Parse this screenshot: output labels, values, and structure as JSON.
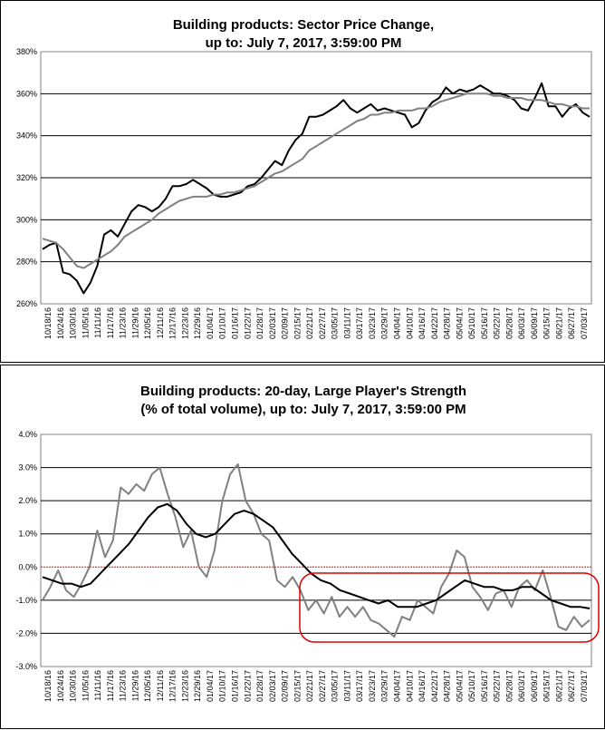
{
  "chart_data": [
    {
      "type": "line",
      "title": "Building products: Sector Price Change,",
      "subtitle": "up to: July 7, 2017, 3:59:00 PM",
      "xlabel": "",
      "ylabel": "",
      "ylim": [
        260,
        380
      ],
      "yticks": [
        "260%",
        "280%",
        "300%",
        "320%",
        "340%",
        "360%",
        "380%"
      ],
      "grid": true,
      "x_tick_labels": [
        "10/18/16",
        "10/24/16",
        "10/30/16",
        "11/05/16",
        "11/11/16",
        "11/17/16",
        "11/23/16",
        "11/29/16",
        "12/05/16",
        "12/11/16",
        "12/17/16",
        "12/23/16",
        "12/29/16",
        "01/04/17",
        "01/10/17",
        "01/16/17",
        "01/22/17",
        "01/28/17",
        "02/03/17",
        "02/09/17",
        "02/15/17",
        "02/21/17",
        "02/27/17",
        "03/05/17",
        "03/11/17",
        "03/17/17",
        "03/23/17",
        "03/29/17",
        "04/04/17",
        "04/10/17",
        "04/16/17",
        "04/22/17",
        "04/28/17",
        "05/04/17",
        "05/10/17",
        "05/16/17",
        "05/22/17",
        "05/28/17",
        "06/03/17",
        "06/09/17",
        "06/15/17",
        "06/21/17",
        "06/27/17",
        "07/03/17"
      ],
      "series": [
        {
          "color": "#000000",
          "values": [
            286,
            288,
            289,
            275,
            274,
            271,
            265,
            270,
            278,
            293,
            295,
            292,
            298,
            304,
            307,
            306,
            304,
            306,
            310,
            316,
            316,
            317,
            319,
            317,
            315,
            312,
            311,
            311,
            312,
            313,
            316,
            317,
            320,
            324,
            328,
            326,
            333,
            338,
            341,
            349,
            349,
            350,
            352,
            354,
            357,
            353,
            351,
            353,
            355,
            352,
            353,
            352,
            351,
            350,
            344,
            346,
            352,
            356,
            358,
            363,
            360,
            362,
            361,
            362,
            364,
            362,
            360,
            360,
            359,
            357,
            353,
            352,
            358,
            365,
            354,
            354,
            349,
            353,
            355,
            351,
            349
          ]
        },
        {
          "color": "#808080",
          "values": [
            291,
            290,
            289,
            286,
            282,
            278,
            277,
            279,
            281,
            283,
            285,
            288,
            292,
            294,
            296,
            298,
            300,
            303,
            305,
            307,
            309,
            310,
            311,
            311,
            311,
            312,
            312,
            313,
            313,
            314,
            315,
            316,
            318,
            320,
            322,
            323,
            325,
            327,
            329,
            333,
            335,
            337,
            339,
            341,
            343,
            345,
            347,
            348,
            350,
            350,
            351,
            351,
            352,
            352,
            352,
            353,
            353,
            354,
            356,
            357,
            358,
            359,
            360,
            360,
            360,
            360,
            359,
            359,
            358,
            358,
            358,
            357,
            357,
            357,
            356,
            355,
            355,
            354,
            354,
            353,
            353
          ]
        }
      ]
    },
    {
      "type": "line",
      "title": "Building products: 20-day, Large Player's Strength",
      "subtitle": "(% of total volume), up to: July 7, 2017, 3:59:00 PM",
      "xlabel": "",
      "ylabel": "",
      "ylim": [
        -3.0,
        4.0
      ],
      "yticks": [
        "-3.0%",
        "-2.0%",
        "-1.0%",
        "0.0%",
        "1.0%",
        "2.0%",
        "3.0%",
        "4.0%"
      ],
      "grid": true,
      "zero_line_color": "#ff0000",
      "highlight": "red rounded rectangle around the right portion of the lines",
      "x_tick_labels": [
        "10/18/16",
        "10/24/16",
        "10/30/16",
        "11/05/16",
        "11/11/16",
        "11/17/16",
        "11/23/16",
        "11/29/16",
        "12/05/16",
        "12/11/16",
        "12/17/16",
        "12/23/16",
        "12/29/16",
        "01/04/17",
        "01/10/17",
        "01/16/17",
        "01/22/17",
        "01/28/17",
        "02/03/17",
        "02/09/17",
        "02/15/17",
        "02/21/17",
        "02/27/17",
        "03/05/17",
        "03/11/17",
        "03/17/17",
        "03/23/17",
        "03/29/17",
        "04/04/17",
        "04/10/17",
        "04/16/17",
        "04/22/17",
        "04/28/17",
        "05/04/17",
        "05/10/17",
        "05/16/17",
        "05/22/17",
        "05/28/17",
        "06/03/17",
        "06/09/17",
        "06/15/17",
        "06/21/17",
        "06/27/17",
        "07/03/17"
      ],
      "series": [
        {
          "color": "#808080",
          "values": [
            -1.0,
            -0.6,
            -0.1,
            -0.7,
            -0.9,
            -0.5,
            0.0,
            1.1,
            0.3,
            0.8,
            2.4,
            2.2,
            2.5,
            2.3,
            2.8,
            3.0,
            2.2,
            1.5,
            0.6,
            1.1,
            0.0,
            -0.3,
            0.5,
            2.0,
            2.8,
            3.1,
            2.0,
            1.6,
            1.0,
            0.8,
            -0.4,
            -0.6,
            -0.3,
            -0.7,
            -1.3,
            -1.0,
            -1.4,
            -0.9,
            -1.5,
            -1.2,
            -1.5,
            -1.2,
            -1.6,
            -1.7,
            -1.9,
            -2.1,
            -1.5,
            -1.6,
            -1.0,
            -1.2,
            -1.4,
            -0.6,
            -0.2,
            0.5,
            0.3,
            -0.6,
            -0.9,
            -1.3,
            -0.8,
            -0.7,
            -1.2,
            -0.6,
            -0.4,
            -0.7,
            -0.1,
            -0.9,
            -1.8,
            -1.9,
            -1.5,
            -1.8,
            -1.6
          ]
        },
        {
          "color": "#000000",
          "values": [
            -0.3,
            -0.4,
            -0.5,
            -0.5,
            -0.6,
            -0.5,
            -0.2,
            0.1,
            0.4,
            0.7,
            1.1,
            1.5,
            1.8,
            1.9,
            1.7,
            1.3,
            1.0,
            0.9,
            1.0,
            1.3,
            1.6,
            1.7,
            1.6,
            1.4,
            1.2,
            0.8,
            0.4,
            0.1,
            -0.2,
            -0.4,
            -0.5,
            -0.7,
            -0.8,
            -0.9,
            -1.0,
            -1.1,
            -1.0,
            -1.2,
            -1.2,
            -1.2,
            -1.1,
            -1.0,
            -0.8,
            -0.6,
            -0.4,
            -0.5,
            -0.6,
            -0.6,
            -0.7,
            -0.7,
            -0.6,
            -0.6,
            -0.8,
            -1.0,
            -1.1,
            -1.2,
            -1.2,
            -1.25
          ]
        }
      ]
    }
  ]
}
